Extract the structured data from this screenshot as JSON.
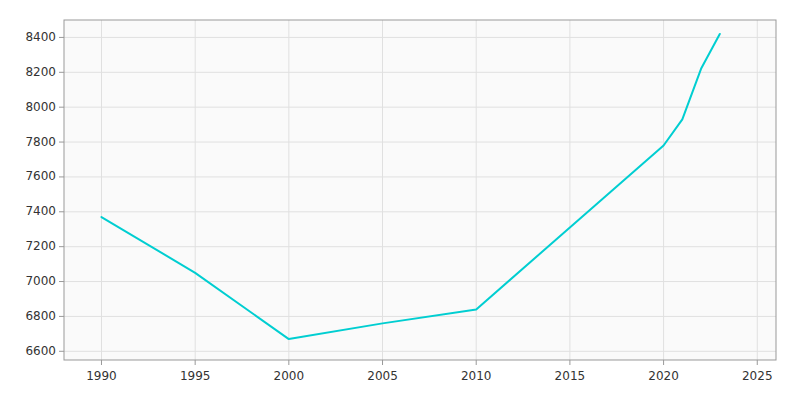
{
  "chart_data": {
    "type": "line",
    "x": [
      1990,
      1995,
      2000,
      2005,
      2010,
      2020,
      2021,
      2022,
      2023
    ],
    "values": [
      7370,
      7050,
      6670,
      6760,
      6840,
      7780,
      7930,
      8220,
      8420
    ],
    "color": "#00CED1",
    "xlim": [
      1988,
      2026
    ],
    "ylim": [
      6550,
      8500
    ],
    "xticks": [
      1990,
      1995,
      2000,
      2005,
      2010,
      2015,
      2020,
      2025
    ],
    "yticks": [
      6600,
      6800,
      7000,
      7200,
      7400,
      7600,
      7800,
      8000,
      8200,
      8400
    ],
    "grid": true
  }
}
